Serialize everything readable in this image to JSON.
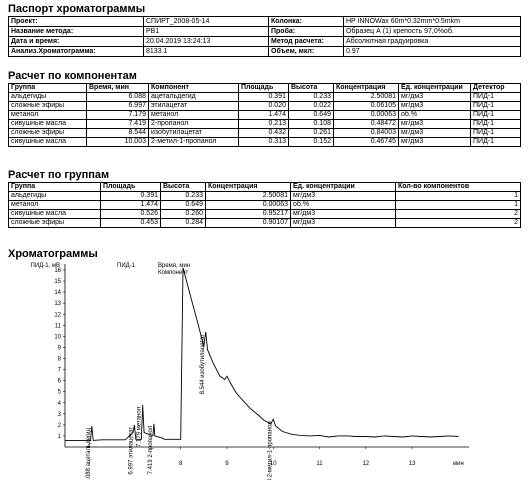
{
  "passport": {
    "title": "Паспорт хроматограммы",
    "rows": [
      [
        "Проект:",
        "СПИРТ_2008-05-14",
        "Колонка:",
        "HP INNOWax 60m*0.32mm*0.5mkm"
      ],
      [
        "Название метода:",
        "РВ1",
        "Проба:",
        "Образец А (1) крепость 97,0%об."
      ],
      [
        "Дата и время:",
        "20.04.2019 13:24:13",
        "Метод расчета:",
        "Абсолютная градуировка"
      ],
      [
        "Анализ.Хроматограмма:",
        "8133.1",
        "Объем, мкл:",
        "0.97"
      ]
    ]
  },
  "components": {
    "title": "Расчет по компонентам",
    "headers": [
      "Группа",
      "Время, мин",
      "Компонент",
      "Площадь",
      "Высота",
      "Концентрация",
      "Ед. концентрации",
      "Детектор"
    ],
    "rows": [
      [
        "альдегиды",
        "6.088",
        "ацетальдегид",
        "0.391",
        "0.233",
        "2.50081",
        "мг/дм3",
        "ПИД-1"
      ],
      [
        "сложные эфиры",
        "6.997",
        "этилацетат",
        "0.020",
        "0.022",
        "0.06105",
        "мг/дм3",
        "ПИД-1"
      ],
      [
        "метанол",
        "7.179",
        "метанол",
        "1.474",
        "0.649",
        "0.00063",
        "об.%",
        "ПИД-1"
      ],
      [
        "сивушные масла",
        "7.419",
        "2-пропанол",
        "0.213",
        "0.108",
        "0.48472",
        "мг/дм3",
        "ПИД-1"
      ],
      [
        "сложные эфиры",
        "8.544",
        "изобутилацетат",
        "0.432",
        "0.261",
        "0.84003",
        "мг/дм3",
        "ПИД-1"
      ],
      [
        "сивушные масла",
        "10.003",
        "2-метил-1-пропанол",
        "0.313",
        "0.152",
        "0.46745",
        "мг/дм3",
        "ПИД-1"
      ]
    ]
  },
  "groups": {
    "title": "Расчет по группам",
    "headers": [
      "Группа",
      "Площадь",
      "Высота",
      "Концентрация",
      "Ед. концентрации",
      "Кол-во компонентов"
    ],
    "rows": [
      [
        "альдегиды",
        "0.391",
        "0.233",
        "2.50081",
        "мг/дм3",
        "1"
      ],
      [
        "метанол",
        "1.474",
        "0.649",
        "0.00063",
        "об.%",
        "1"
      ],
      [
        "сивушные масла",
        "0.526",
        "0.260",
        "0.95217",
        "мг/дм3",
        "2"
      ],
      [
        "сложные эфиры",
        "0.453",
        "0.284",
        "0.90107",
        "мг/дм3",
        "2"
      ]
    ]
  },
  "chart_title": "Хроматограммы",
  "chart_data": {
    "type": "line",
    "title": "",
    "ylabel": "ПИД-1, мВ",
    "xlabel": "мин",
    "detector_label": "ПИД-1",
    "legend_lines": [
      "Время, мин",
      "Компонент"
    ],
    "ylim": [
      0,
      16
    ],
    "xlim": [
      5.5,
      14.1
    ],
    "yticks": [
      "1",
      "2",
      "3",
      "4",
      "5",
      "6",
      "7",
      "8",
      "9",
      "10",
      "11",
      "12",
      "13",
      "14",
      "15",
      "16"
    ],
    "xticks": [
      "8",
      "9",
      "10",
      "11",
      "12",
      "13"
    ],
    "series": [
      {
        "x": [
          5.5,
          6.05,
          6.08,
          6.11,
          6.3,
          6.8,
          6.97,
          7.0,
          7.03,
          7.15,
          7.18,
          7.21,
          7.4,
          7.42,
          7.44,
          7.6,
          7.65,
          7.7,
          7.85,
          8.0,
          8.05,
          8.2,
          8.35,
          8.5,
          8.54,
          8.58,
          8.7,
          8.85,
          8.95,
          9.0,
          9.1,
          9.2,
          9.3,
          9.5,
          9.7,
          9.8,
          9.95,
          10.0,
          10.05,
          10.2,
          10.4,
          10.6,
          10.8,
          11.0,
          11.2,
          11.4,
          11.6,
          11.8,
          12.0,
          12.2,
          12.4,
          12.6,
          12.8,
          13.0,
          13.2,
          13.4,
          13.6,
          13.8,
          14.0
        ],
        "y": [
          0.6,
          0.6,
          1.9,
          0.6,
          0.65,
          0.65,
          1.3,
          2.0,
          0.7,
          0.7,
          3.8,
          1.3,
          1.0,
          2.1,
          1.0,
          0.8,
          0.7,
          0.7,
          0.7,
          0.7,
          16.2,
          13.8,
          11.5,
          9.1,
          10.4,
          8.8,
          7.6,
          6.4,
          6.1,
          6.4,
          5.6,
          4.9,
          4.4,
          3.5,
          2.8,
          2.4,
          2.1,
          2.5,
          1.9,
          1.4,
          1.15,
          1.05,
          1.0,
          1.05,
          0.9,
          1.0,
          1.0,
          0.95,
          0.95,
          0.9,
          1.0,
          0.95,
          0.9,
          1.0,
          0.95,
          0.9,
          0.95,
          1.0,
          0.95
        ]
      }
    ],
    "peaks": [
      {
        "x": 6.088,
        "y": 1.9,
        "label": "6.088 ацетальдегид"
      },
      {
        "x": 6.997,
        "y": 2.0,
        "label": "6.997 этилацетат"
      },
      {
        "x": 7.179,
        "y": 3.8,
        "label": "7.179 метанол"
      },
      {
        "x": 7.419,
        "y": 2.1,
        "label": "7.419 2-пропанол"
      },
      {
        "x": 8.544,
        "y": 10.4,
        "label": "8.544 изобутилацетат"
      },
      {
        "x": 10.003,
        "y": 2.5,
        "label": "10.003 2-метил-1-пропанол"
      }
    ]
  }
}
